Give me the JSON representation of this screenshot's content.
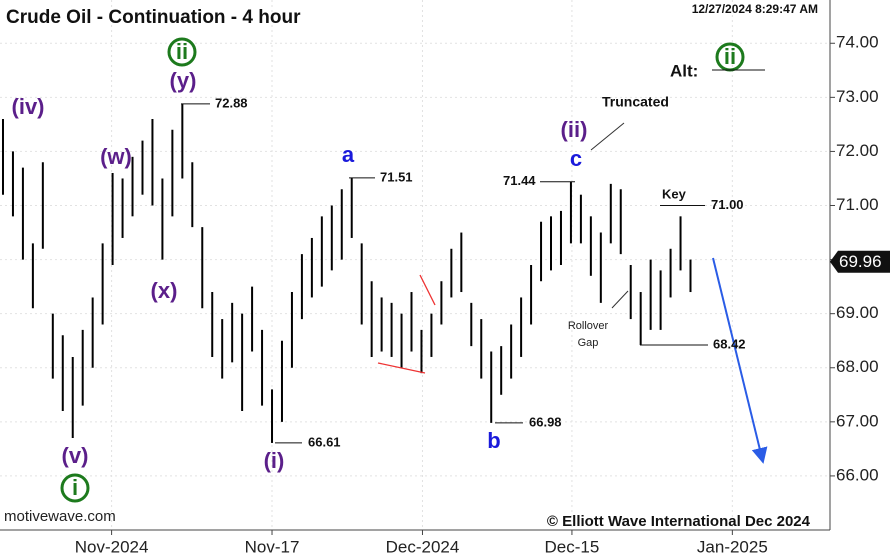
{
  "chart_data": {
    "type": "ohlc",
    "title": "Crude Oil - Continuation - 4 hour",
    "timestamp": "12/27/2024 8:29:47 AM",
    "source": "motivewave.com",
    "copyright": "© Elliott Wave International Dec 2024",
    "color": "#000000",
    "x": [
      0,
      1,
      2,
      3,
      4,
      5,
      6,
      7,
      8,
      9,
      10,
      11,
      12,
      13,
      14,
      15,
      16,
      17,
      18,
      19,
      20,
      21,
      22,
      23,
      24,
      25,
      26,
      27,
      28,
      29,
      30,
      31,
      32,
      33,
      34,
      35,
      36,
      37,
      38,
      39,
      40,
      41,
      42,
      43,
      44,
      45,
      46,
      47,
      48,
      49,
      50,
      51,
      52,
      53,
      54,
      55,
      56,
      57,
      58,
      59,
      60,
      61,
      62,
      63,
      64,
      65,
      66,
      67,
      68,
      69
    ],
    "high": [
      72.6,
      72.0,
      71.7,
      70.3,
      71.8,
      69.0,
      68.6,
      68.2,
      68.7,
      69.3,
      70.3,
      71.6,
      71.5,
      71.9,
      72.2,
      72.6,
      71.5,
      72.4,
      72.88,
      71.8,
      70.6,
      69.4,
      68.9,
      69.2,
      69.0,
      69.5,
      68.7,
      67.6,
      68.5,
      69.4,
      70.1,
      70.4,
      70.8,
      71.0,
      71.3,
      71.51,
      70.3,
      69.6,
      69.3,
      69.2,
      69.0,
      69.4,
      68.7,
      69.0,
      69.6,
      70.2,
      70.5,
      69.2,
      68.9,
      68.3,
      68.4,
      68.8,
      69.3,
      69.9,
      70.7,
      70.8,
      70.9,
      71.44,
      71.2,
      70.8,
      70.5,
      71.4,
      71.3,
      69.9,
      69.4,
      70.0,
      69.8,
      70.2,
      70.8,
      70.0
    ],
    "low": [
      71.2,
      70.8,
      70.0,
      69.1,
      70.2,
      67.8,
      67.2,
      66.7,
      67.3,
      68.0,
      68.8,
      69.9,
      70.4,
      70.8,
      71.2,
      71.0,
      70.0,
      70.8,
      71.5,
      70.6,
      69.1,
      68.2,
      67.8,
      68.1,
      67.2,
      68.3,
      67.3,
      66.61,
      67.0,
      68.0,
      68.9,
      69.3,
      69.5,
      69.8,
      70.0,
      70.4,
      68.8,
      68.2,
      68.3,
      68.2,
      68.0,
      68.3,
      67.9,
      68.2,
      68.8,
      69.3,
      69.4,
      68.4,
      67.8,
      66.98,
      67.5,
      67.8,
      68.2,
      68.8,
      69.6,
      69.8,
      69.9,
      70.3,
      70.3,
      69.7,
      69.2,
      70.3,
      70.1,
      68.9,
      68.42,
      68.7,
      68.7,
      69.3,
      69.8,
      69.4
    ],
    "xlim": [
      -0.3,
      83
    ],
    "xticks": [
      {
        "value": 10.9,
        "label": "Nov-2024"
      },
      {
        "value": 27,
        "label": "Nov-17"
      },
      {
        "value": 42.1,
        "label": "Dec-2024"
      },
      {
        "value": 57.1,
        "label": "Dec-15"
      },
      {
        "value": 73.2,
        "label": "Jan-2025"
      }
    ],
    "ylim": [
      65,
      74.8
    ],
    "yticks": [
      {
        "value": 66,
        "label": "66.00"
      },
      {
        "value": 67,
        "label": "67.00"
      },
      {
        "value": 68,
        "label": "68.00"
      },
      {
        "value": 69,
        "label": "69.00"
      },
      {
        "value": 70,
        "label": "70.00"
      },
      {
        "value": 71,
        "label": "71.00"
      },
      {
        "value": 72,
        "label": "72.00"
      },
      {
        "value": 73,
        "label": "73.00"
      },
      {
        "value": 74,
        "label": "74.00"
      }
    ],
    "last_price": 69.96,
    "levels": {
      "values": [
        72.88,
        71.51,
        71.44,
        71,
        68.42,
        66.61,
        66.98
      ],
      "value_labels": [
        "72.88",
        "71.51",
        "71.44",
        "71.00",
        "68.42",
        "66.61",
        "66.98"
      ]
    },
    "wave_labels": [
      "(iv)",
      "(w)",
      "(x)",
      "(y)",
      "ii",
      "(v)",
      "i",
      "(i)",
      "a",
      "b",
      "c",
      "(ii)",
      "ii"
    ],
    "notes": [
      "Truncated",
      "Key",
      "Rollover",
      "Gap",
      "Alt:"
    ]
  }
}
